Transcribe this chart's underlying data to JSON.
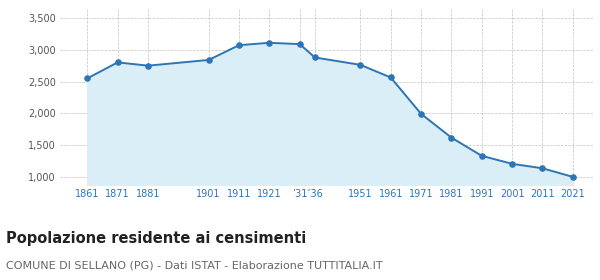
{
  "years": [
    1861,
    1871,
    1881,
    1901,
    1911,
    1921,
    1931,
    1936,
    1951,
    1961,
    1971,
    1981,
    1991,
    2001,
    2011,
    2021
  ],
  "population": [
    2549,
    2801,
    2749,
    2839,
    3071,
    3109,
    3088,
    2878,
    2762,
    2563,
    1991,
    1617,
    1331,
    1205,
    1135,
    1000
  ],
  "ylim": [
    875,
    3650
  ],
  "yticks": [
    1000,
    1500,
    2000,
    2500,
    3000,
    3500
  ],
  "ytick_labels": [
    "1,000",
    "1,500",
    "2,000",
    "2,500",
    "3,000",
    "3,500"
  ],
  "line_color": "#2e75b6",
  "fill_color": "#daeef8",
  "marker_color": "#2e75b6",
  "grid_color": "#c0c0c0",
  "background_color": "#ffffff",
  "title": "Popolazione residente ai censimenti",
  "subtitle": "COMUNE DI SELLANO (PG) - Dati ISTAT - Elaborazione TUTTITALIA.IT",
  "title_fontsize": 10.5,
  "subtitle_fontsize": 8,
  "x_tick_positions": [
    1861,
    1871,
    1881,
    1901,
    1911,
    1921,
    1933.5,
    1951,
    1961,
    1971,
    1981,
    1991,
    2001,
    2011,
    2021
  ],
  "x_tick_labels": [
    "1861",
    "1871",
    "1881",
    "1901",
    "1911",
    "1921",
    "’31’36",
    "1951",
    "1961",
    "1971",
    "1981",
    "1991",
    "2001",
    "2011",
    "2021"
  ],
  "xlim": [
    1852,
    2028
  ]
}
